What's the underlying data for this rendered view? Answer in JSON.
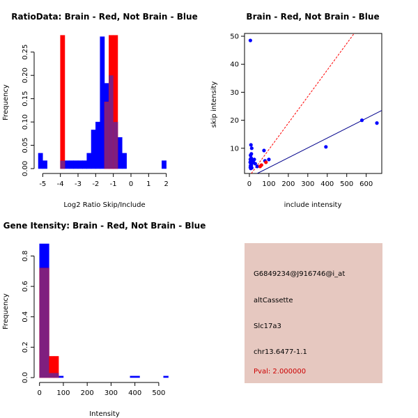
{
  "colors": {
    "brain": "#ff0000",
    "not_brain": "#0000ff",
    "overlap": "#7f1f7f",
    "info_bg": "#e6c8c0",
    "pval": "#cc0000"
  },
  "chart_data": [
    {
      "id": "ratio",
      "type": "bar",
      "title": "RatioData: Brain - Red, Not Brain - Blue",
      "xlabel": "Log2 Ratio Skip/Include",
      "ylabel": "Frequency",
      "xlim": [
        -5.25,
        2.25
      ],
      "ylim": [
        0,
        0.29
      ],
      "xticks": [
        -5,
        -4,
        -3,
        -2,
        -1,
        0,
        1,
        2
      ],
      "yticks": [
        0.0,
        0.05,
        0.1,
        0.15,
        0.2,
        0.25
      ],
      "ytick_labels": [
        "0.00",
        "0.05",
        "0.10",
        "0.15",
        "0.20",
        "0.25"
      ],
      "series": [
        {
          "name": "Not Brain",
          "color": "blue",
          "bins": [
            [
              -5.25,
              -5.0,
              0.033
            ],
            [
              -5.0,
              -4.75,
              0.017
            ],
            [
              -4.0,
              -3.75,
              0.017
            ],
            [
              -3.75,
              -3.5,
              0.017
            ],
            [
              -3.5,
              -3.25,
              0.017
            ],
            [
              -3.25,
              -3.0,
              0.017
            ],
            [
              -3.0,
              -2.75,
              0.017
            ],
            [
              -2.75,
              -2.5,
              0.017
            ],
            [
              -2.5,
              -2.25,
              0.033
            ],
            [
              -2.25,
              -2.0,
              0.083
            ],
            [
              -2.0,
              -1.75,
              0.1
            ],
            [
              -1.75,
              -1.5,
              0.283
            ],
            [
              -1.5,
              -1.25,
              0.183
            ],
            [
              -1.25,
              -1.0,
              0.2
            ],
            [
              -1.0,
              -0.75,
              0.1
            ],
            [
              -0.75,
              -0.5,
              0.067
            ],
            [
              -0.5,
              -0.25,
              0.033
            ],
            [
              1.75,
              2.0,
              0.017
            ]
          ]
        },
        {
          "name": "Brain",
          "color": "red",
          "bins": [
            [
              -4.0,
              -3.75,
              0.286
            ],
            [
              -1.5,
              -1.25,
              0.143
            ],
            [
              -1.25,
              -1.0,
              0.286
            ],
            [
              -1.0,
              -0.75,
              0.286
            ]
          ]
        }
      ]
    },
    {
      "id": "scatter",
      "type": "scatter",
      "title": "Brain - Red, Not Brain - Blue",
      "xlabel": "include intensity",
      "ylabel": "skip intensity",
      "xlim": [
        -25,
        680
      ],
      "ylim": [
        1,
        51
      ],
      "xticks": [
        0,
        100,
        200,
        300,
        400,
        500,
        600
      ],
      "yticks": [
        10,
        20,
        30,
        40,
        50
      ],
      "series": [
        {
          "name": "Not Brain",
          "color": "blue",
          "points": [
            [
              5,
              48.5
            ],
            [
              8,
              11.2
            ],
            [
              12,
              10
            ],
            [
              10,
              8
            ],
            [
              6,
              7.5
            ],
            [
              9,
              6.5
            ],
            [
              5,
              6
            ],
            [
              12,
              5.8
            ],
            [
              7,
              5.3
            ],
            [
              4,
              5
            ],
            [
              15,
              4.8
            ],
            [
              8,
              4.5
            ],
            [
              10,
              4
            ],
            [
              6,
              3.8
            ],
            [
              9,
              3.5
            ],
            [
              5,
              3.2
            ],
            [
              12,
              3
            ],
            [
              7,
              2.8
            ],
            [
              20,
              5
            ],
            [
              30,
              4.5
            ],
            [
              25,
              6
            ],
            [
              75,
              9.2
            ],
            [
              40,
              3.5
            ],
            [
              80,
              5.5
            ],
            [
              100,
              6
            ],
            [
              393,
              10.5
            ],
            [
              578,
              20
            ],
            [
              655,
              19
            ]
          ]
        },
        {
          "name": "Brain",
          "color": "red",
          "points": [
            [
              55,
              3.5
            ],
            [
              62,
              4.0
            ],
            [
              85,
              5.0
            ]
          ]
        }
      ],
      "lines": [
        {
          "color": "red",
          "style": "dashed",
          "x0": 10,
          "y0": 1,
          "x1": 538,
          "y1": 51
        },
        {
          "color": "darkblue",
          "style": "solid",
          "x0": 40,
          "y0": 1,
          "x1": 680,
          "y1": 23.5
        }
      ]
    },
    {
      "id": "gene",
      "type": "bar",
      "title": "Gene Itensity: Brain - Red, Not Brain - Blue",
      "xlabel": "Intensity",
      "ylabel": "Frequency",
      "xlim": [
        -5,
        550
      ],
      "ylim": [
        0,
        0.88
      ],
      "xticks": [
        0,
        100,
        200,
        300,
        400,
        500
      ],
      "yticks": [
        0.0,
        0.2,
        0.4,
        0.6,
        0.8
      ],
      "ytick_labels": [
        "0.0",
        "0.2",
        "0.4",
        "0.6",
        "0.8"
      ],
      "series": [
        {
          "name": "Not Brain",
          "color": "blue",
          "bins": [
            [
              0,
              40,
              0.88
            ],
            [
              40,
              60,
              0.03
            ],
            [
              60,
              80,
              0.03
            ],
            [
              80,
              100,
              0.01
            ],
            [
              380,
              420,
              0.01
            ],
            [
              520,
              540,
              0.01
            ]
          ]
        },
        {
          "name": "Brain",
          "color": "red",
          "bins": [
            [
              0,
              40,
              0.72
            ],
            [
              40,
              60,
              0.14
            ],
            [
              60,
              80,
              0.14
            ]
          ]
        }
      ]
    }
  ],
  "info_panel": {
    "probe_id": "G6849234@J916746@i_at",
    "event_type": "altCassette",
    "gene": "Slc17a3",
    "location": "chr13.6477-1.1",
    "pval_text": "Pval: 2.000000"
  }
}
